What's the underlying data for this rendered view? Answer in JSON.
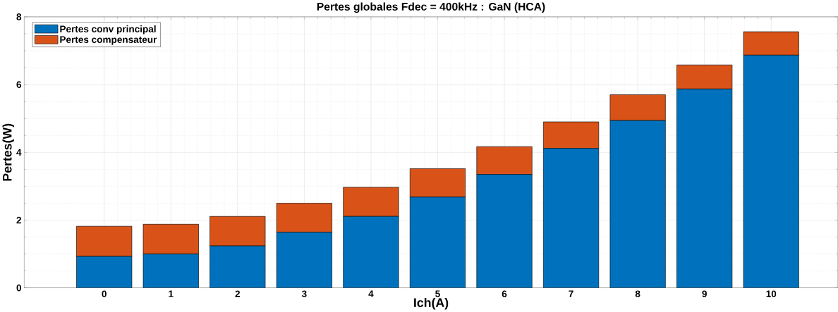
{
  "chart_data": {
    "type": "bar",
    "stacked": true,
    "title": "Pertes globales Fdec = 400kHz : GaN (HCA)",
    "xlabel": "Ich(A)",
    "ylabel": "Pertes(W)",
    "x": [
      0,
      1,
      2,
      3,
      4,
      5,
      6,
      7,
      8,
      9,
      10
    ],
    "series": [
      {
        "name": "Pertes conv principal",
        "color": "#0072bd",
        "values": [
          0.93,
          1.0,
          1.24,
          1.64,
          2.11,
          2.68,
          3.35,
          4.12,
          4.94,
          5.87,
          6.87
        ]
      },
      {
        "name": "Pertes compensateur",
        "color": "#d95319",
        "values": [
          0.89,
          0.88,
          0.87,
          0.86,
          0.86,
          0.84,
          0.82,
          0.78,
          0.76,
          0.71,
          0.69
        ]
      }
    ],
    "xlim": [
      -1.2,
      11
    ],
    "xticks": [
      0,
      1,
      2,
      3,
      4,
      5,
      6,
      7,
      8,
      9,
      10
    ],
    "ylim": [
      0,
      8
    ],
    "yticks": [
      0,
      2,
      4,
      6,
      8
    ],
    "grid": true,
    "legend": "top left"
  }
}
